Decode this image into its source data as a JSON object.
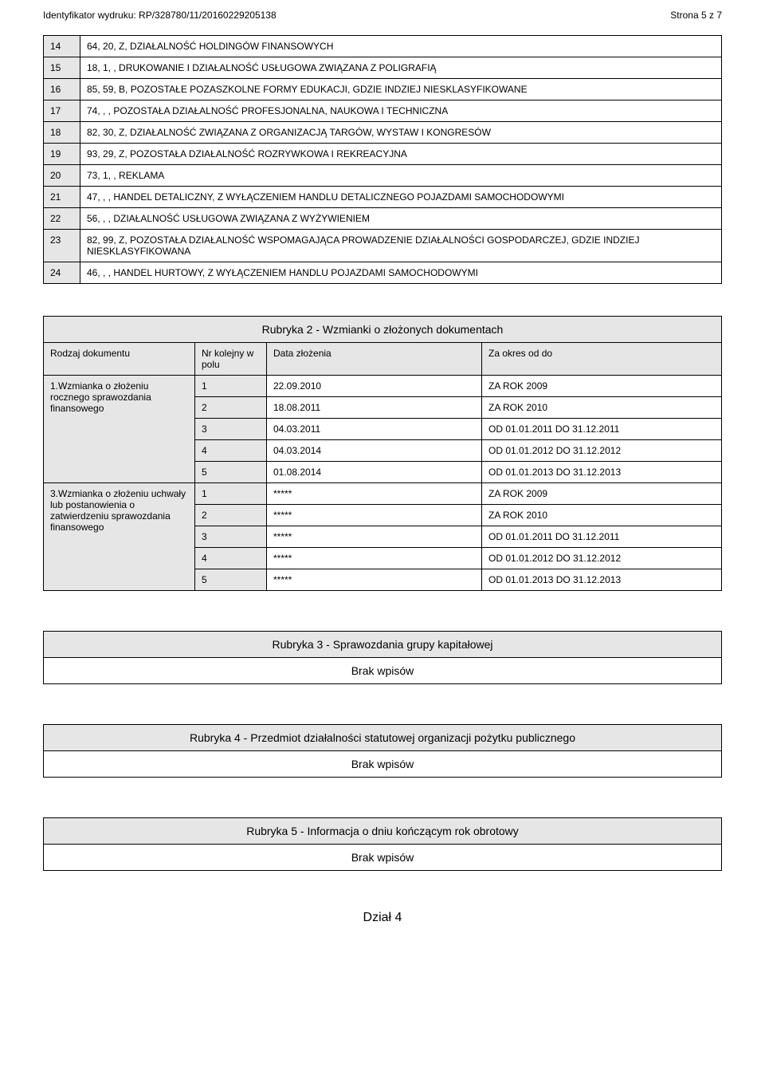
{
  "header": {
    "id_label": "Identyfikator wydruku: RP/328780/11/20160229205138",
    "page_label": "Strona 5 z 7"
  },
  "activities": [
    {
      "n": "14",
      "t": "64, 20, Z, DZIAŁALNOŚĆ HOLDINGÓW FINANSOWYCH"
    },
    {
      "n": "15",
      "t": "18, 1, , DRUKOWANIE I DZIAŁALNOŚĆ USŁUGOWA ZWIĄZANA Z POLIGRAFIĄ"
    },
    {
      "n": "16",
      "t": "85, 59, B, POZOSTAŁE POZASZKOLNE FORMY EDUKACJI, GDZIE INDZIEJ NIESKLASYFIKOWANE"
    },
    {
      "n": "17",
      "t": "74, , , POZOSTAŁA DZIAŁALNOŚĆ PROFESJONALNA, NAUKOWA I TECHNICZNA"
    },
    {
      "n": "18",
      "t": "82, 30, Z, DZIAŁALNOŚĆ ZWIĄZANA Z ORGANIZACJĄ TARGÓW, WYSTAW I KONGRESÓW"
    },
    {
      "n": "19",
      "t": "93, 29, Z, POZOSTAŁA DZIAŁALNOŚĆ ROZRYWKOWA I REKREACYJNA"
    },
    {
      "n": "20",
      "t": "73, 1, , REKLAMA"
    },
    {
      "n": "21",
      "t": "47, , , HANDEL DETALICZNY, Z WYŁĄCZENIEM HANDLU DETALICZNEGO POJAZDAMI SAMOCHODOWYMI"
    },
    {
      "n": "22",
      "t": "56, , , DZIAŁALNOŚĆ USŁUGOWA ZWIĄZANA Z WYŻYWIENIEM"
    },
    {
      "n": "23",
      "t": "82, 99, Z, POZOSTAŁA DZIAŁALNOŚĆ WSPOMAGAJĄCA PROWADZENIE DZIAŁALNOŚCI GOSPODARCZEJ, GDZIE INDZIEJ NIESKLASYFIKOWANA"
    },
    {
      "n": "24",
      "t": "46, , , HANDEL HURTOWY, Z WYŁĄCZENIEM HANDLU POJAZDAMI SAMOCHODOWYMI"
    }
  ],
  "rubryka2": {
    "title": "Rubryka 2 - Wzmianki o złożonych dokumentach",
    "headers": {
      "type": "Rodzaj dokumentu",
      "num": "Nr kolejny w polu",
      "date": "Data złożenia",
      "period": "Za okres od do"
    },
    "groups": [
      {
        "type": "1.Wzmianka o złożeniu rocznego sprawozdania finansowego",
        "rows": [
          {
            "n": "1",
            "d": "22.09.2010",
            "p": "ZA ROK 2009"
          },
          {
            "n": "2",
            "d": "18.08.2011",
            "p": "ZA ROK 2010"
          },
          {
            "n": "3",
            "d": "04.03.2011",
            "p": "OD 01.01.2011 DO 31.12.2011"
          },
          {
            "n": "4",
            "d": "04.03.2014",
            "p": "OD 01.01.2012 DO 31.12.2012"
          },
          {
            "n": "5",
            "d": "01.08.2014",
            "p": "OD 01.01.2013 DO 31.12.2013"
          }
        ]
      },
      {
        "type": "3.Wzmianka o złożeniu uchwały lub postanowienia o zatwierdzeniu sprawozdania finansowego",
        "rows": [
          {
            "n": "1",
            "d": "*****",
            "p": "ZA ROK 2009"
          },
          {
            "n": "2",
            "d": "*****",
            "p": "ZA ROK 2010"
          },
          {
            "n": "3",
            "d": "*****",
            "p": "OD 01.01.2011 DO 31.12.2011"
          },
          {
            "n": "4",
            "d": "*****",
            "p": "OD 01.01.2012 DO 31.12.2012"
          },
          {
            "n": "5",
            "d": "*****",
            "p": "OD 01.01.2013 DO 31.12.2013"
          }
        ]
      }
    ]
  },
  "brak": "Brak wpisów",
  "rubryka3_title": "Rubryka 3 - Sprawozdania grupy kapitałowej",
  "rubryka4_title": "Rubryka 4 - Przedmiot działalności statutowej organizacji pożytku publicznego",
  "rubryka5_title": "Rubryka 5 - Informacja o dniu kończącym rok obrotowy",
  "dzial4": "Dział 4",
  "colors": {
    "cell_bg": "#e6e6e6",
    "border": "#000000",
    "page_bg": "#ffffff"
  }
}
